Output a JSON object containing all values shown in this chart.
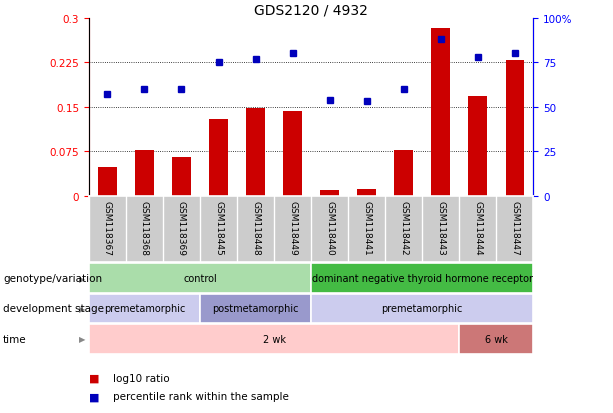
{
  "title": "GDS2120 / 4932",
  "samples": [
    "GSM118367",
    "GSM118368",
    "GSM118369",
    "GSM118445",
    "GSM118448",
    "GSM118449",
    "GSM118440",
    "GSM118441",
    "GSM118442",
    "GSM118443",
    "GSM118444",
    "GSM118447"
  ],
  "log10_ratio": [
    0.048,
    0.077,
    0.065,
    0.13,
    0.148,
    0.142,
    0.01,
    0.012,
    0.077,
    0.282,
    0.168,
    0.228
  ],
  "percentile_rank": [
    57,
    60,
    60,
    75,
    77,
    80,
    54,
    53,
    60,
    88,
    78,
    80
  ],
  "ylim_left": [
    0,
    0.3
  ],
  "ylim_right": [
    0,
    100
  ],
  "yticks_left": [
    0,
    0.075,
    0.15,
    0.225,
    0.3
  ],
  "ytick_labels_left": [
    "0",
    "0.075",
    "0.15",
    "0.225",
    "0.3"
  ],
  "yticks_right": [
    0,
    25,
    50,
    75,
    100
  ],
  "ytick_labels_right": [
    "0",
    "25",
    "50",
    "75",
    "100%"
  ],
  "bar_color": "#cc0000",
  "dot_color": "#0000bb",
  "title_fontsize": 10,
  "genotype_label": "genotype/variation",
  "dev_stage_label": "development stage",
  "time_label": "time",
  "genotype_groups": [
    {
      "label": "control",
      "start": 0,
      "end": 6,
      "color": "#aaddaa"
    },
    {
      "label": "dominant negative thyroid hormone receptor",
      "start": 6,
      "end": 12,
      "color": "#44bb44"
    }
  ],
  "dev_stage_groups": [
    {
      "label": "premetamorphic",
      "start": 0,
      "end": 3,
      "color": "#ccccee"
    },
    {
      "label": "postmetamorphic",
      "start": 3,
      "end": 6,
      "color": "#9999cc"
    },
    {
      "label": "premetamorphic",
      "start": 6,
      "end": 12,
      "color": "#ccccee"
    }
  ],
  "time_groups": [
    {
      "label": "2 wk",
      "start": 0,
      "end": 10,
      "color": "#ffcccc"
    },
    {
      "label": "6 wk",
      "start": 10,
      "end": 12,
      "color": "#cc7777"
    }
  ],
  "sample_bg_color": "#cccccc",
  "legend_bar_label": "log10 ratio",
  "legend_dot_label": "percentile rank within the sample"
}
